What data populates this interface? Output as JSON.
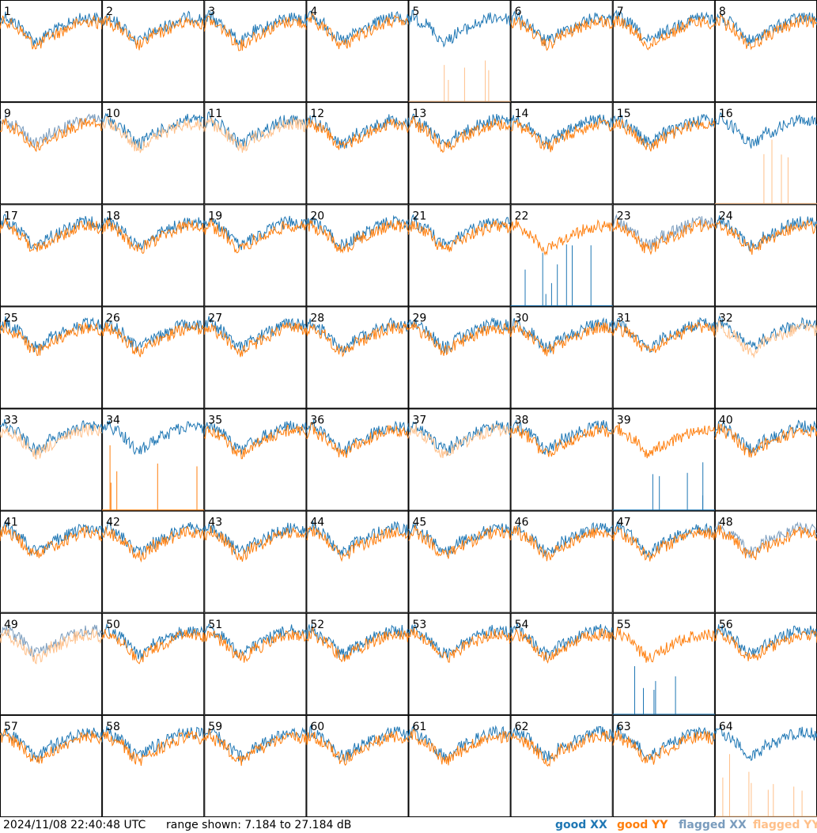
{
  "footer": {
    "timestamp": "2024/11/08 22:40:48 UTC",
    "range": "range shown: 7.184 to 27.184 dB"
  },
  "legend": [
    {
      "key": "good_xx",
      "text": "good XX",
      "color": "#1f77b4"
    },
    {
      "key": "good_yy",
      "text": "good YY",
      "color": "#ff7f0e"
    },
    {
      "key": "flagged_xx",
      "text": "flagged XX",
      "color": "#7a9cbd"
    },
    {
      "key": "flagged_yy",
      "text": "flagged YY",
      "color": "#ffc08a"
    }
  ],
  "chart_data": {
    "type": "line",
    "panel_count": 64,
    "grid": {
      "rows": 8,
      "cols": 8
    },
    "ylim_db": [
      7.184,
      27.184
    ],
    "panels": [
      {
        "id": "1",
        "xx": "good",
        "yy": "good"
      },
      {
        "id": "2",
        "xx": "good",
        "yy": "good"
      },
      {
        "id": "3",
        "xx": "good",
        "yy": "good"
      },
      {
        "id": "4",
        "xx": "good",
        "yy": "good"
      },
      {
        "id": "5",
        "xx": "good",
        "yy": "flagged"
      },
      {
        "id": "6",
        "xx": "good",
        "yy": "good"
      },
      {
        "id": "7",
        "xx": "good",
        "yy": "good"
      },
      {
        "id": "8",
        "xx": "good",
        "yy": "good"
      },
      {
        "id": "9",
        "xx": "flagged",
        "yy": "good"
      },
      {
        "id": "10",
        "xx": "good",
        "yy": "flagged"
      },
      {
        "id": "11",
        "xx": "good",
        "yy": "flagged"
      },
      {
        "id": "12",
        "xx": "good",
        "yy": "good"
      },
      {
        "id": "13",
        "xx": "good",
        "yy": "good"
      },
      {
        "id": "14",
        "xx": "good",
        "yy": "good"
      },
      {
        "id": "15",
        "xx": "good",
        "yy": "good"
      },
      {
        "id": "16",
        "xx": "good",
        "yy": "flagged"
      },
      {
        "id": "17",
        "xx": "good",
        "yy": "good"
      },
      {
        "id": "18",
        "xx": "good",
        "yy": "good"
      },
      {
        "id": "19",
        "xx": "good",
        "yy": "good"
      },
      {
        "id": "20",
        "xx": "good",
        "yy": "good"
      },
      {
        "id": "21",
        "xx": "good",
        "yy": "good"
      },
      {
        "id": "22",
        "xx": "good",
        "yy": "good"
      },
      {
        "id": "23",
        "xx": "flagged",
        "yy": "good"
      },
      {
        "id": "24",
        "xx": "good",
        "yy": "good"
      },
      {
        "id": "25",
        "xx": "good",
        "yy": "good"
      },
      {
        "id": "26",
        "xx": "good",
        "yy": "good"
      },
      {
        "id": "27",
        "xx": "good",
        "yy": "good"
      },
      {
        "id": "28",
        "xx": "good",
        "yy": "good"
      },
      {
        "id": "29",
        "xx": "good",
        "yy": "good"
      },
      {
        "id": "30",
        "xx": "good",
        "yy": "good"
      },
      {
        "id": "31",
        "xx": "good",
        "yy": "good"
      },
      {
        "id": "32",
        "xx": "good",
        "yy": "flagged"
      },
      {
        "id": "33",
        "xx": "good",
        "yy": "flagged"
      },
      {
        "id": "34",
        "xx": "good",
        "yy": "good"
      },
      {
        "id": "35",
        "xx": "good",
        "yy": "good"
      },
      {
        "id": "36",
        "xx": "good",
        "yy": "good"
      },
      {
        "id": "37",
        "xx": "good",
        "yy": "flagged"
      },
      {
        "id": "38",
        "xx": "good",
        "yy": "good"
      },
      {
        "id": "39",
        "xx": "good",
        "yy": "good"
      },
      {
        "id": "40",
        "xx": "good",
        "yy": "good"
      },
      {
        "id": "41",
        "xx": "good",
        "yy": "good"
      },
      {
        "id": "42",
        "xx": "good",
        "yy": "good"
      },
      {
        "id": "43",
        "xx": "good",
        "yy": "good"
      },
      {
        "id": "44",
        "xx": "good",
        "yy": "good"
      },
      {
        "id": "45",
        "xx": "good",
        "yy": "good"
      },
      {
        "id": "46",
        "xx": "good",
        "yy": "good"
      },
      {
        "id": "47",
        "xx": "good",
        "yy": "good"
      },
      {
        "id": "48",
        "xx": "flagged",
        "yy": "good"
      },
      {
        "id": "49",
        "xx": "flagged",
        "yy": "flagged"
      },
      {
        "id": "50",
        "xx": "good",
        "yy": "good"
      },
      {
        "id": "51",
        "xx": "good",
        "yy": "good"
      },
      {
        "id": "52",
        "xx": "good",
        "yy": "good"
      },
      {
        "id": "53",
        "xx": "good",
        "yy": "good"
      },
      {
        "id": "54",
        "xx": "good",
        "yy": "good"
      },
      {
        "id": "55",
        "xx": "good",
        "yy": "good"
      },
      {
        "id": "56",
        "xx": "good",
        "yy": "good"
      },
      {
        "id": "57",
        "xx": "good",
        "yy": "good"
      },
      {
        "id": "58",
        "xx": "good",
        "yy": "good"
      },
      {
        "id": "59",
        "xx": "good",
        "yy": "good"
      },
      {
        "id": "60",
        "xx": "good",
        "yy": "good"
      },
      {
        "id": "61",
        "xx": "good",
        "yy": "good"
      },
      {
        "id": "62",
        "xx": "good",
        "yy": "good"
      },
      {
        "id": "63",
        "xx": "good",
        "yy": "good"
      },
      {
        "id": "64",
        "xx": "good",
        "yy": "flagged"
      }
    ]
  }
}
